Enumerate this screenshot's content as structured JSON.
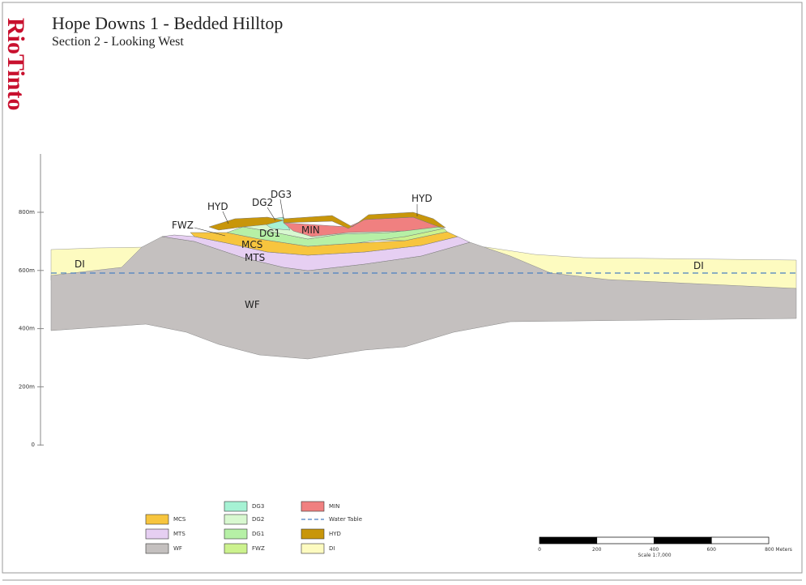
{
  "logo": "RioTinto",
  "header": {
    "title": "Hope Downs 1 - Bedded Hilltop",
    "subtitle": "Section 2 - Looking West"
  },
  "y_axis": {
    "labels": [
      "800m",
      "600m",
      "400m",
      "200m",
      "0"
    ]
  },
  "section_labels": [
    "HYD",
    "DG2",
    "DG3",
    "DG1",
    "MIN",
    "HYD",
    "FWZ",
    "MCS",
    "MTS",
    "DI",
    "DI",
    "WF"
  ],
  "legend": [
    {
      "label": "MCS",
      "color": "#f7c53e"
    },
    {
      "label": "MTS",
      "color": "#e6cff2"
    },
    {
      "label": "WF",
      "color": "#c4c0bf"
    },
    {
      "label": "DG3",
      "color": "#a6f2d4"
    },
    {
      "label": "DG2",
      "color": "#d8f8d0"
    },
    {
      "label": "DG1",
      "color": "#b6f0a6"
    },
    {
      "label": "FWZ",
      "color": "#ccf28e"
    },
    {
      "label": "MIN",
      "color": "#f08080"
    },
    {
      "label": "Water Table",
      "color": "#4a7fc0",
      "style": "dash"
    },
    {
      "label": "HYD",
      "color": "#c8960a"
    },
    {
      "label": "DI",
      "color": "#fdfbc0"
    }
  ],
  "scale_bar": {
    "labels": [
      "0",
      "200",
      "400",
      "600",
      "800 Meters"
    ],
    "scale": "Scale 1:7,000"
  }
}
